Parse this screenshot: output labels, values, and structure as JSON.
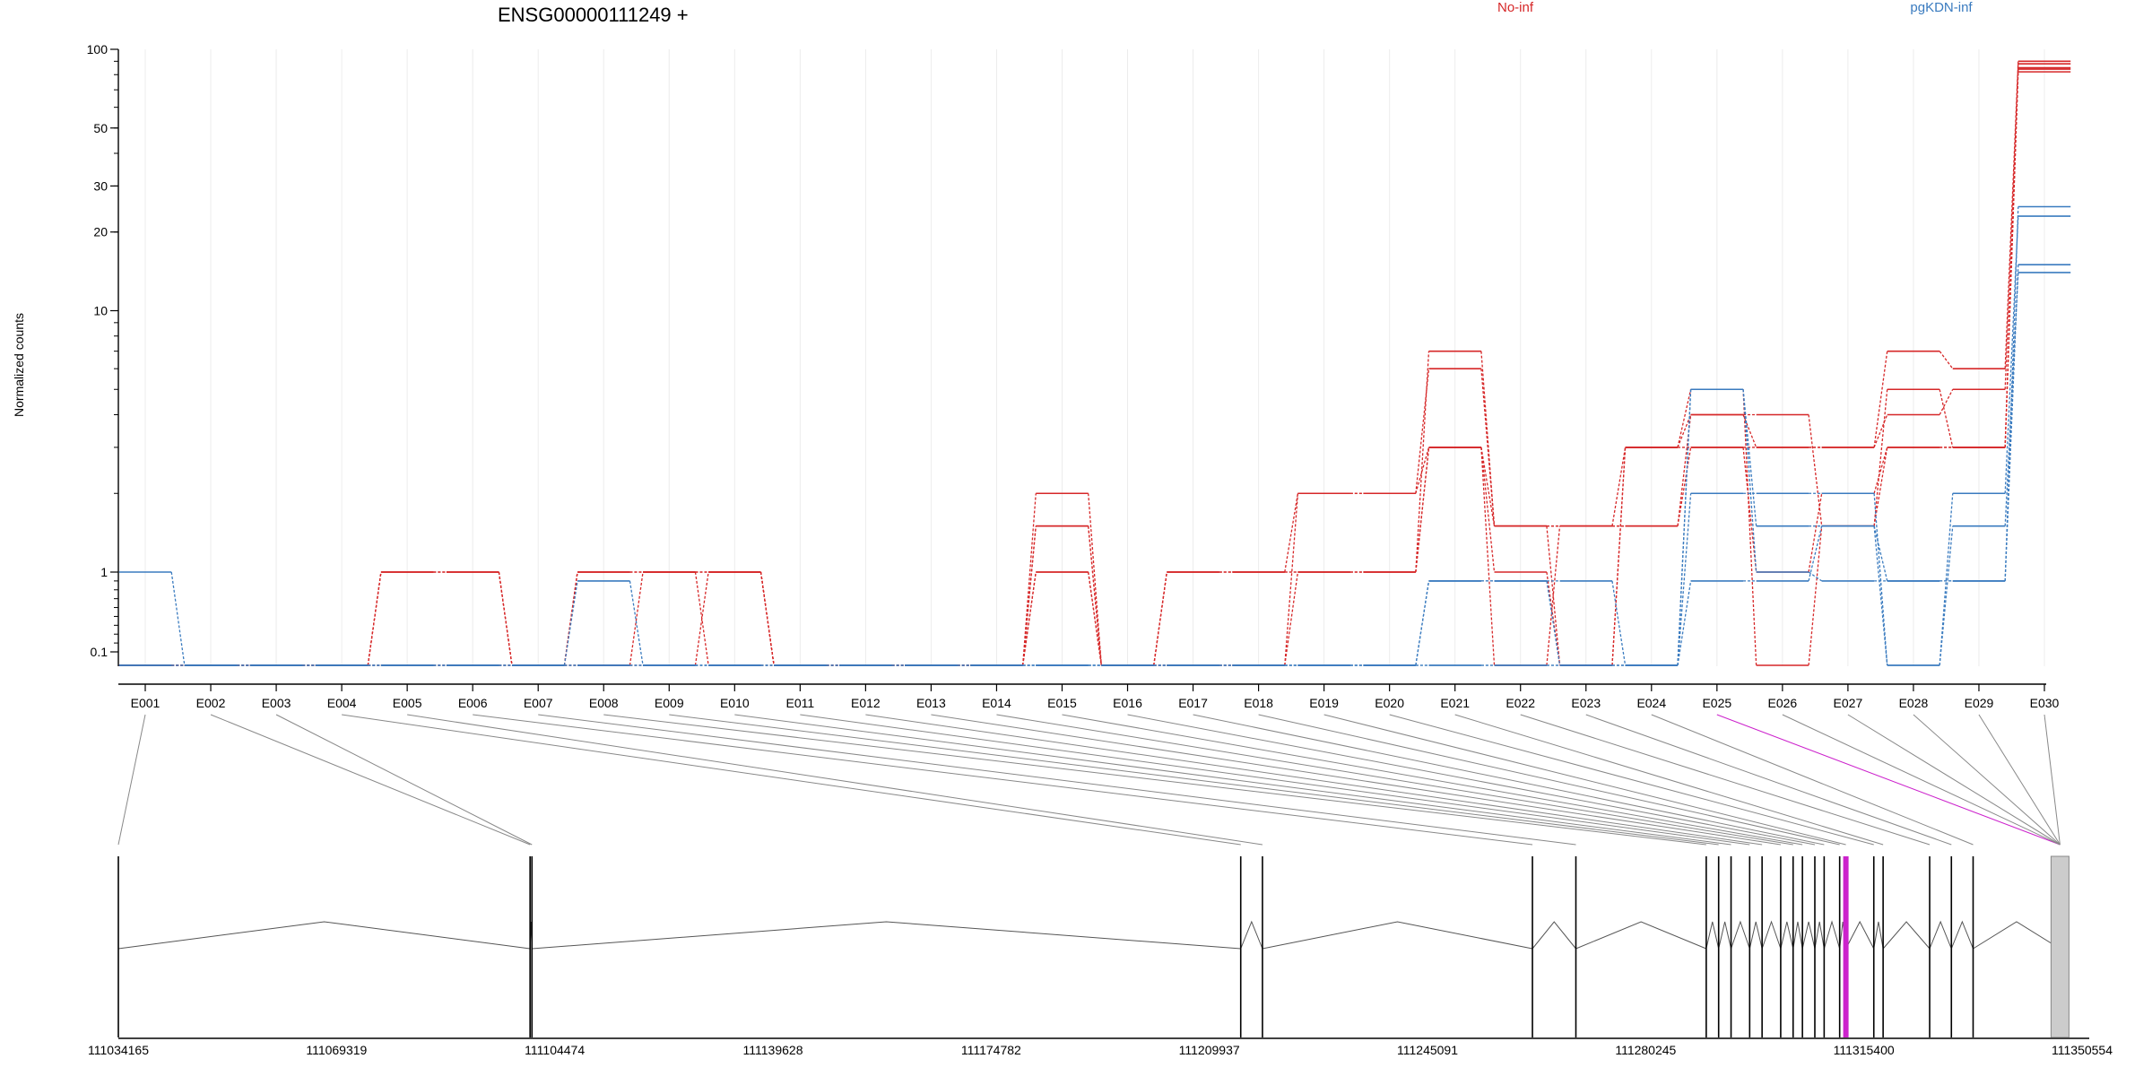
{
  "chart_data": {
    "type": "line",
    "title": "ENSG00000111249 +",
    "ylabel": "Normalized counts",
    "xlabel": "",
    "y_scale": "log(1+count) with floor near 0",
    "y_ticks": [
      0.1,
      1,
      10,
      20,
      30,
      50,
      100
    ],
    "y_tick_labels": [
      "0.1",
      "1",
      "10",
      "20",
      "30",
      "50",
      "100"
    ],
    "grid": "vertical, light",
    "legend_placement": "top (inline, above plot)",
    "categories": [
      "E001",
      "E002",
      "E003",
      "E004",
      "E005",
      "E006",
      "E007",
      "E008",
      "E009",
      "E010",
      "E011",
      "E012",
      "E013",
      "E014",
      "E015",
      "E016",
      "E017",
      "E018",
      "E019",
      "E020",
      "E021",
      "E022",
      "E023",
      "E024",
      "E025",
      "E026",
      "E027",
      "E028",
      "E029",
      "E030"
    ],
    "groups": [
      {
        "name": "No-inf",
        "color": "#d62728"
      },
      {
        "name": "pgKDN-inf",
        "color": "#3a7bbf"
      }
    ],
    "series": [
      {
        "group": "No-inf",
        "values": [
          0,
          0,
          0,
          0,
          1,
          1,
          0,
          1,
          1,
          1,
          0,
          0,
          0,
          0,
          1,
          0,
          1,
          1,
          1,
          1,
          3,
          1,
          0,
          3,
          5,
          0,
          1.5,
          5,
          3,
          85
        ]
      },
      {
        "group": "No-inf",
        "values": [
          0,
          0,
          0,
          0,
          0,
          0,
          0,
          1,
          1,
          0,
          0,
          0,
          0,
          0,
          2,
          0,
          0,
          0,
          2,
          2,
          6,
          1.5,
          1.5,
          1.5,
          4,
          4,
          1.5,
          3,
          3,
          88
        ]
      },
      {
        "group": "No-inf",
        "values": [
          0,
          0,
          0,
          0,
          1,
          1,
          0,
          0,
          0,
          1,
          0,
          0,
          0,
          0,
          1.5,
          0,
          1,
          1,
          1,
          1,
          3,
          1.5,
          1.5,
          1.5,
          3,
          3,
          3,
          7,
          6,
          90
        ]
      },
      {
        "group": "No-inf",
        "values": [
          0,
          0,
          0,
          0,
          0,
          0,
          0,
          1,
          1,
          1,
          0,
          0,
          0,
          0,
          1.5,
          0,
          0,
          0,
          1,
          1,
          7,
          1.5,
          0,
          3,
          3,
          1,
          2,
          3,
          3,
          82
        ]
      },
      {
        "group": "No-inf",
        "values": [
          0,
          0,
          0,
          0,
          1,
          1,
          0,
          0,
          1,
          1,
          0,
          0,
          0,
          0,
          1,
          0,
          1,
          1,
          2,
          2,
          3,
          0,
          1.5,
          3,
          4,
          3,
          3,
          4,
          5,
          84
        ]
      },
      {
        "group": "pgKDN-inf",
        "values": [
          1,
          0,
          0,
          0,
          0,
          0,
          0,
          0.9,
          0,
          0,
          0,
          0,
          0,
          0,
          0,
          0,
          0,
          0,
          0,
          0,
          0.9,
          0.9,
          0.9,
          0,
          5,
          1,
          0.9,
          0.9,
          0.9,
          25
        ]
      },
      {
        "group": "pgKDN-inf",
        "values": [
          0,
          0,
          0,
          0,
          0,
          0,
          0,
          0,
          0,
          0,
          0,
          0,
          0,
          0,
          0,
          0,
          0,
          0,
          0,
          0,
          0.9,
          0.9,
          0,
          0,
          2,
          2,
          2,
          0,
          2,
          23
        ]
      },
      {
        "group": "pgKDN-inf",
        "values": [
          0,
          0,
          0,
          0,
          0,
          0,
          0,
          0,
          0,
          0,
          0,
          0,
          0,
          0,
          0,
          0,
          0,
          0,
          0,
          0,
          0,
          0,
          0,
          0,
          0.9,
          0.9,
          1.5,
          0.9,
          0.9,
          15
        ]
      },
      {
        "group": "pgKDN-inf",
        "values": [
          0,
          0,
          0,
          0,
          0,
          0,
          0,
          0,
          0,
          0,
          0,
          0,
          0,
          0,
          0,
          0,
          0,
          0,
          0,
          0,
          0,
          0,
          0,
          0,
          5,
          1.5,
          1.5,
          0,
          1.5,
          14
        ]
      }
    ],
    "gene_model": {
      "coordinate_labels": [
        "111034165",
        "111069319",
        "111104474",
        "111139628",
        "111174782",
        "111209937",
        "111245091",
        "111280245",
        "111315400",
        "111350554"
      ],
      "coordinate_range": [
        111034165,
        111350554
      ],
      "exon_positions": [
        111034165,
        111100500,
        111100800,
        111215000,
        111218500,
        111262000,
        111269000,
        111290000,
        111292000,
        111294000,
        111297000,
        111299000,
        111302000,
        111304000,
        111305500,
        111307500,
        111309000,
        111311500,
        111312500,
        111317000,
        111318500,
        111326000,
        111329500,
        111333000,
        111347000
      ],
      "highlighted_exon": "E025",
      "highlight_color": "#cc22cc",
      "last_exon_fill": "#cccccc"
    }
  }
}
